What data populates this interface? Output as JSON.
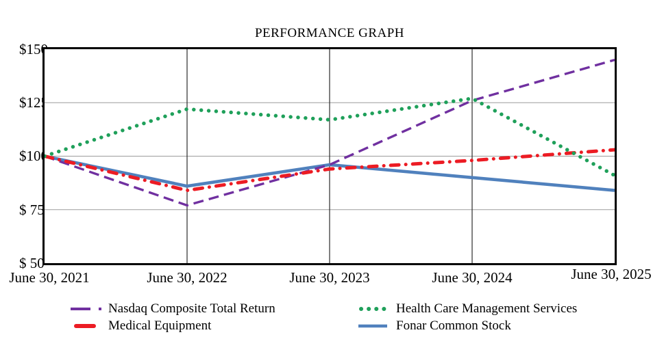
{
  "chart_data": {
    "type": "line",
    "title": "PERFORMANCE GRAPH",
    "xlabel": "",
    "ylabel": "",
    "categories": [
      "June 30, 2021",
      "June 30, 2022",
      "June 30, 2023",
      "June 30, 2024",
      "June 30, 2025"
    ],
    "series": [
      {
        "name": "Nasdaq Composite Total Return",
        "color": "#7030A0",
        "style": "dashed",
        "values": [
          100,
          77,
          96,
          126,
          145
        ]
      },
      {
        "name": "Medical Equipment",
        "color": "#EC1C24",
        "style": "dash-dot",
        "values": [
          100,
          84,
          94,
          98,
          103
        ]
      },
      {
        "name": "Health Care Management Services",
        "color": "#1FA05A",
        "style": "dotted",
        "values": [
          100,
          122,
          117,
          127,
          91
        ]
      },
      {
        "name": "Fonar Common Stock",
        "color": "#5081BD",
        "style": "solid",
        "values": [
          100,
          86,
          96,
          90,
          84
        ]
      }
    ],
    "ylim": [
      50,
      150
    ],
    "ytick_labels": [
      "$150",
      "$125",
      "$100",
      "$ 75",
      "$ 50"
    ],
    "ytick_values": [
      150,
      125,
      100,
      75,
      50
    ],
    "grid": true,
    "legend_position": "bottom",
    "draw_order": [
      3,
      0,
      1,
      2
    ],
    "gridline_vertical_color": "#2b2b2b",
    "gridline_horizontal_color": "#9b9b9b",
    "border_color": "#000000"
  }
}
